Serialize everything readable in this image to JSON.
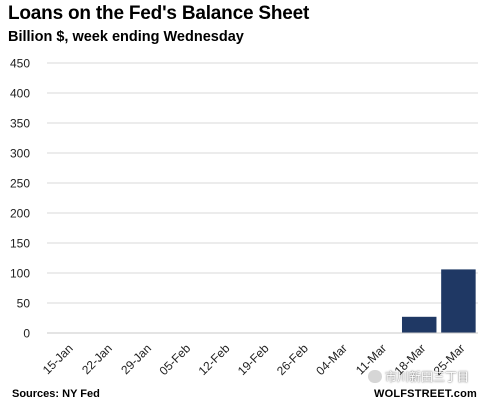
{
  "chart_data": {
    "type": "bar",
    "title": "Loans on the Fed's Balance Sheet",
    "subtitle": "Billion $, week ending Wednesday",
    "categories": [
      "15-Jan",
      "22-Jan",
      "29-Jan",
      "05-Feb",
      "12-Feb",
      "19-Feb",
      "26-Feb",
      "04-Mar",
      "11-Mar",
      "18-Mar",
      "25-Mar"
    ],
    "values": [
      0,
      0,
      0,
      0,
      0,
      0,
      0,
      0,
      0,
      27,
      106
    ],
    "ylim": [
      0,
      450
    ],
    "yticks": [
      0,
      50,
      100,
      150,
      200,
      250,
      300,
      350,
      400,
      450
    ],
    "grid": true,
    "bar_color": "#1f3864"
  },
  "footer": {
    "source": "Sources: NY Fed",
    "brand": "WOLFSTREET.com",
    "watermark": "市川新田三丁目"
  }
}
